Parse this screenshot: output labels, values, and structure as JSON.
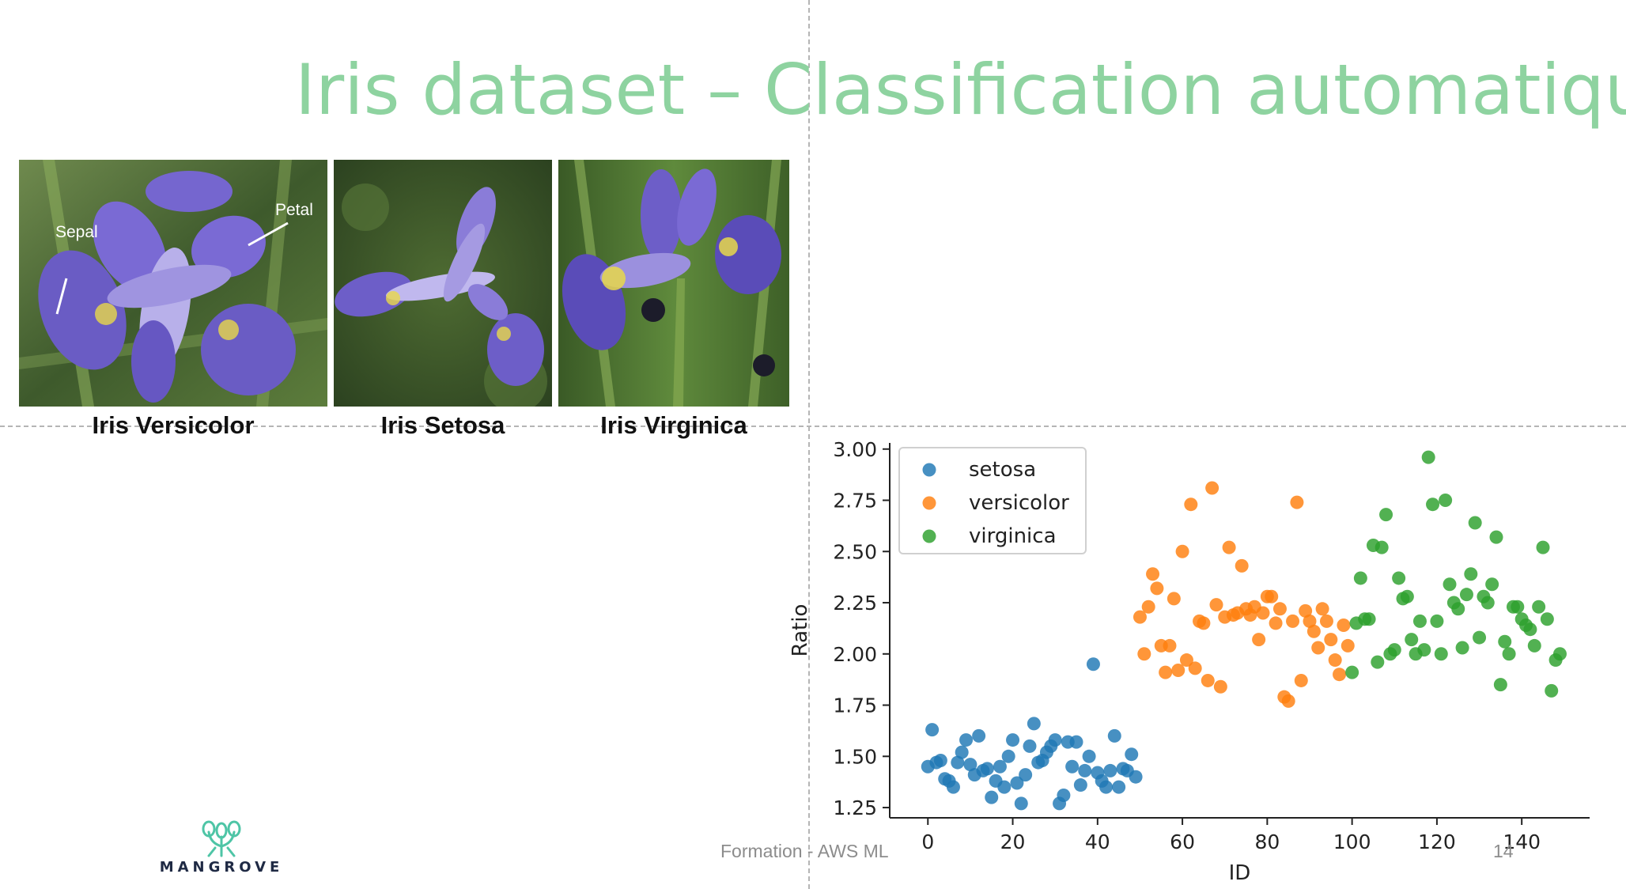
{
  "slide": {
    "title": "Iris dataset – Classification automatique",
    "footer": "Formation - AWS ML",
    "page_number": "14",
    "logo_text": "MANGROVE"
  },
  "photos": [
    {
      "caption": "Iris Versicolor",
      "annotations": [
        "Sepal",
        "Petal"
      ]
    },
    {
      "caption": "Iris Setosa"
    },
    {
      "caption": "Iris Virginica"
    }
  ],
  "colors": {
    "title": "#8ed3a0",
    "setosa": "#1f77b4",
    "versicolor": "#ff7f0e",
    "virginica": "#2ca02c"
  },
  "chart_data": {
    "type": "scatter",
    "title": "",
    "xlabel": "ID",
    "ylabel": "Ratio",
    "xlim": [
      -9,
      156
    ],
    "ylim": [
      1.2,
      3.03
    ],
    "xticks": [
      0,
      20,
      40,
      60,
      80,
      100,
      120,
      140
    ],
    "yticks": [
      1.25,
      1.5,
      1.75,
      2.0,
      2.25,
      2.5,
      2.75,
      3.0
    ],
    "grid": false,
    "legend": "upper-left",
    "series": [
      {
        "name": "setosa",
        "x": [
          0,
          1,
          2,
          3,
          4,
          5,
          6,
          7,
          8,
          9,
          10,
          11,
          12,
          13,
          14,
          15,
          16,
          17,
          18,
          19,
          20,
          21,
          22,
          23,
          24,
          25,
          26,
          27,
          28,
          29,
          30,
          31,
          32,
          33,
          34,
          35,
          36,
          37,
          38,
          39,
          40,
          41,
          42,
          43,
          44,
          45,
          46,
          47,
          48,
          49
        ],
        "y": [
          1.45,
          1.63,
          1.47,
          1.48,
          1.39,
          1.38,
          1.35,
          1.47,
          1.52,
          1.58,
          1.46,
          1.41,
          1.6,
          1.43,
          1.44,
          1.3,
          1.38,
          1.45,
          1.35,
          1.5,
          1.58,
          1.37,
          1.27,
          1.41,
          1.55,
          1.66,
          1.47,
          1.48,
          1.52,
          1.55,
          1.58,
          1.27,
          1.31,
          1.57,
          1.45,
          1.57,
          1.36,
          1.43,
          1.5,
          1.95,
          1.42,
          1.38,
          1.35,
          1.43,
          1.6,
          1.35,
          1.44,
          1.43,
          1.51,
          1.4
        ]
      },
      {
        "name": "versicolor",
        "x": [
          50,
          51,
          52,
          53,
          54,
          55,
          56,
          57,
          58,
          59,
          60,
          61,
          62,
          63,
          64,
          65,
          66,
          67,
          68,
          69,
          70,
          71,
          72,
          73,
          74,
          75,
          76,
          77,
          78,
          79,
          80,
          81,
          82,
          83,
          84,
          85,
          86,
          87,
          88,
          89,
          90,
          91,
          92,
          93,
          94,
          95,
          96,
          97,
          98,
          99
        ],
        "y": [
          2.18,
          2.0,
          2.23,
          2.39,
          2.32,
          2.04,
          1.91,
          2.04,
          2.27,
          1.92,
          2.5,
          1.97,
          2.73,
          1.93,
          2.16,
          2.15,
          1.87,
          2.81,
          2.24,
          1.84,
          2.18,
          2.52,
          2.19,
          2.2,
          2.43,
          2.22,
          2.19,
          2.23,
          2.07,
          2.2,
          2.28,
          2.28,
          2.15,
          2.22,
          1.79,
          1.77,
          2.16,
          2.74,
          1.87,
          2.21,
          2.16,
          2.11,
          2.03,
          2.22,
          2.16,
          2.07,
          1.97,
          1.9,
          2.14,
          2.04
        ]
      },
      {
        "name": "virginica",
        "x": [
          100,
          101,
          102,
          103,
          104,
          105,
          106,
          107,
          108,
          109,
          110,
          111,
          112,
          113,
          114,
          115,
          116,
          117,
          118,
          119,
          120,
          121,
          122,
          123,
          124,
          125,
          126,
          127,
          128,
          129,
          130,
          131,
          132,
          133,
          134,
          135,
          136,
          137,
          138,
          139,
          140,
          141,
          142,
          143,
          144,
          145,
          146,
          147,
          148,
          149
        ],
        "y": [
          1.91,
          2.15,
          2.37,
          2.17,
          2.17,
          2.53,
          1.96,
          2.52,
          2.68,
          2.0,
          2.02,
          2.37,
          2.27,
          2.28,
          2.07,
          2.0,
          2.16,
          2.02,
          2.96,
          2.73,
          2.16,
          2.0,
          2.75,
          2.34,
          2.25,
          2.22,
          2.03,
          2.29,
          2.39,
          2.64,
          2.08,
          2.28,
          2.25,
          2.34,
          2.57,
          1.85,
          2.06,
          2.0,
          2.23,
          2.23,
          2.17,
          2.14,
          2.12,
          2.04,
          2.23,
          2.52,
          2.17,
          1.82,
          1.97,
          2.0
        ]
      }
    ]
  }
}
